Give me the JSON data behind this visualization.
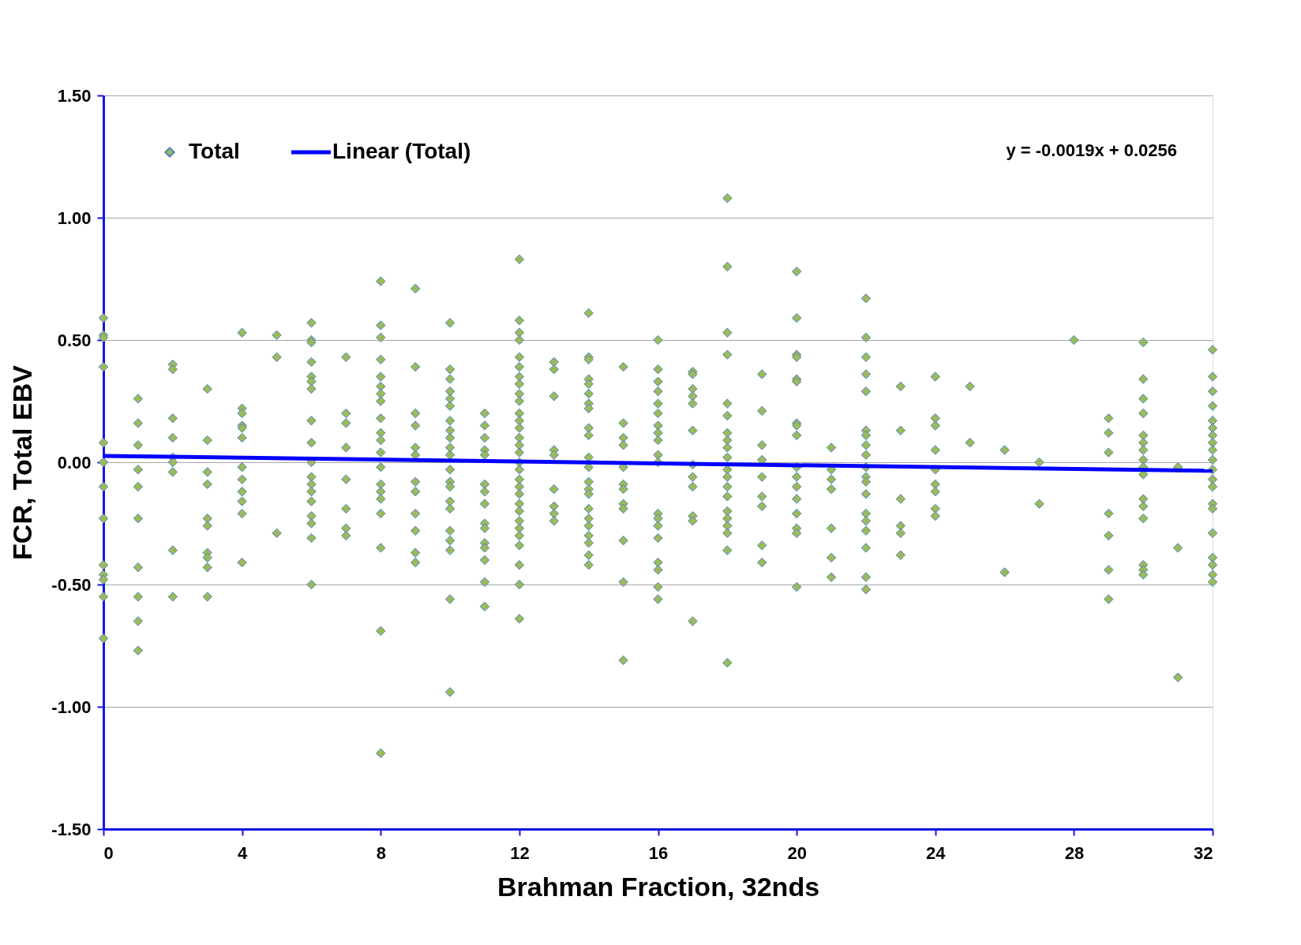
{
  "chart_data": {
    "type": "scatter",
    "xlabel": "Brahman Fraction, 32nds",
    "ylabel": "FCR, Total EBV",
    "xlim": [
      0,
      32
    ],
    "xticks": [
      0,
      4,
      8,
      12,
      16,
      20,
      24,
      28,
      32
    ],
    "ylim": [
      -1.5,
      1.5
    ],
    "yticks": [
      {
        "value": -1.5,
        "label": "-1.50"
      },
      {
        "value": -1.0,
        "label": "-1.00"
      },
      {
        "value": -0.5,
        "label": "-0.50"
      },
      {
        "value": 0,
        "label": "0.00"
      },
      {
        "value": 0.5,
        "label": "0.50"
      },
      {
        "value": 1.0,
        "label": "1.00"
      },
      {
        "value": 1.5,
        "label": "1.50"
      }
    ],
    "grid": "y",
    "legend": "top left",
    "marker": "diamond",
    "annotations": [
      "y = -0.0019x + 0.0256"
    ],
    "series": [
      {
        "name": "Total",
        "type": "scatter",
        "color": "#9bbb59",
        "x": [
          0,
          0,
          0,
          0,
          0,
          0,
          0,
          0,
          0,
          0,
          0,
          0,
          0,
          1,
          1,
          1,
          1,
          1,
          1,
          1,
          1,
          1,
          1,
          2,
          2,
          2,
          2,
          2,
          2,
          2,
          2,
          2,
          3,
          3,
          3,
          3,
          3,
          3,
          3,
          3,
          3,
          3,
          4,
          4,
          4,
          4,
          4,
          4,
          4,
          4,
          4,
          4,
          4,
          4,
          5,
          5,
          5,
          6,
          6,
          6,
          6,
          6,
          6,
          6,
          6,
          6,
          6,
          6,
          6,
          6,
          6,
          6,
          6,
          6,
          6,
          7,
          7,
          7,
          7,
          7,
          7,
          7,
          7,
          8,
          8,
          8,
          8,
          8,
          8,
          8,
          8,
          8,
          8,
          8,
          8,
          8,
          8,
          8,
          8,
          8,
          8,
          8,
          8,
          9,
          9,
          9,
          9,
          9,
          9,
          9,
          9,
          9,
          9,
          9,
          9,
          10,
          10,
          10,
          10,
          10,
          10,
          10,
          10,
          10,
          10,
          10,
          10,
          10,
          10,
          10,
          10,
          10,
          10,
          10,
          10,
          10,
          11,
          11,
          11,
          11,
          11,
          11,
          11,
          11,
          11,
          11,
          11,
          11,
          11,
          11,
          11,
          12,
          12,
          12,
          12,
          12,
          12,
          12,
          12,
          12,
          12,
          12,
          12,
          12,
          12,
          12,
          12,
          12,
          12,
          12,
          12,
          12,
          12,
          12,
          12,
          12,
          12,
          12,
          12,
          12,
          12,
          13,
          13,
          13,
          13,
          13,
          13,
          13,
          13,
          13,
          14,
          14,
          14,
          14,
          14,
          14,
          14,
          14,
          14,
          14,
          14,
          14,
          14,
          14,
          14,
          14,
          14,
          14,
          14,
          14,
          14,
          14,
          15,
          15,
          15,
          15,
          15,
          15,
          15,
          15,
          15,
          15,
          15,
          15,
          16,
          16,
          16,
          16,
          16,
          16,
          16,
          16,
          16,
          16,
          16,
          16,
          16,
          16,
          16,
          16,
          16,
          16,
          16,
          17,
          17,
          17,
          17,
          17,
          17,
          17,
          17,
          17,
          17,
          17,
          17,
          18,
          18,
          18,
          18,
          18,
          18,
          18,
          18,
          18,
          18,
          18,
          18,
          18,
          18,
          18,
          18,
          18,
          18,
          18,
          18,
          19,
          19,
          19,
          19,
          19,
          19,
          19,
          19,
          19,
          20,
          20,
          20,
          20,
          20,
          20,
          20,
          20,
          20,
          20,
          20,
          20,
          20,
          20,
          20,
          20,
          20,
          21,
          21,
          21,
          21,
          21,
          21,
          21,
          22,
          22,
          22,
          22,
          22,
          22,
          22,
          22,
          22,
          22,
          22,
          22,
          22,
          22,
          22,
          22,
          22,
          22,
          22,
          23,
          23,
          23,
          23,
          23,
          23,
          24,
          24,
          24,
          24,
          24,
          24,
          24,
          24,
          24,
          25,
          25,
          26,
          26,
          27,
          27,
          28,
          29,
          29,
          29,
          29,
          29,
          29,
          29,
          30,
          30,
          30,
          30,
          30,
          30,
          30,
          30,
          30,
          30,
          30,
          30,
          30,
          30,
          30,
          30,
          31,
          31,
          31,
          32,
          32,
          32,
          32,
          32,
          32,
          32,
          32,
          32,
          32,
          32,
          32,
          32,
          32,
          32,
          32,
          32,
          32,
          32,
          32
        ],
        "values": [
          0.59,
          0.52,
          0.51,
          0.39,
          0.08,
          0.0,
          -0.1,
          -0.23,
          -0.42,
          -0.46,
          -0.48,
          -0.55,
          -0.72,
          0.26,
          0.16,
          0.07,
          -0.03,
          -0.1,
          -0.23,
          -0.43,
          -0.55,
          -0.65,
          -0.77,
          0.4,
          0.38,
          0.18,
          0.1,
          0.02,
          0.0,
          -0.04,
          -0.36,
          -0.55,
          0.3,
          0.09,
          -0.04,
          -0.09,
          -0.23,
          -0.26,
          -0.37,
          -0.39,
          -0.43,
          -0.55,
          0.53,
          0.22,
          0.2,
          0.15,
          0.14,
          0.1,
          -0.02,
          -0.07,
          -0.12,
          -0.16,
          -0.21,
          -0.41,
          0.52,
          0.43,
          -0.29,
          0.57,
          0.5,
          0.49,
          0.41,
          0.35,
          0.33,
          0.3,
          0.17,
          0.08,
          0.0,
          -0.06,
          -0.09,
          -0.12,
          -0.16,
          -0.22,
          -0.25,
          -0.31,
          -0.5,
          0.43,
          0.2,
          0.16,
          0.06,
          -0.07,
          -0.19,
          -0.27,
          -0.3,
          0.74,
          0.56,
          0.51,
          0.42,
          0.35,
          0.31,
          0.28,
          0.25,
          0.18,
          0.12,
          0.09,
          0.04,
          -0.02,
          -0.09,
          -0.12,
          -0.15,
          -0.21,
          -0.35,
          -0.69,
          -1.19,
          0.71,
          0.39,
          0.2,
          0.15,
          0.06,
          0.03,
          -0.08,
          -0.12,
          -0.21,
          -0.28,
          -0.37,
          -0.41,
          0.57,
          0.38,
          0.34,
          0.29,
          0.26,
          0.23,
          0.17,
          0.13,
          0.1,
          0.06,
          0.03,
          -0.03,
          -0.08,
          -0.1,
          -0.16,
          -0.19,
          -0.28,
          -0.32,
          -0.36,
          -0.56,
          -0.94,
          0.2,
          0.15,
          0.1,
          0.05,
          0.03,
          -0.09,
          -0.12,
          -0.17,
          -0.25,
          -0.27,
          -0.33,
          -0.35,
          -0.4,
          -0.49,
          -0.59,
          0.83,
          0.58,
          0.53,
          0.5,
          0.43,
          0.39,
          0.35,
          0.32,
          0.28,
          0.25,
          0.2,
          0.17,
          0.14,
          0.1,
          0.07,
          0.04,
          0.0,
          -0.03,
          -0.07,
          -0.1,
          -0.13,
          -0.17,
          -0.2,
          -0.24,
          -0.27,
          -0.3,
          -0.34,
          -0.42,
          -0.5,
          -0.64,
          0.41,
          0.38,
          0.27,
          0.05,
          0.03,
          -0.11,
          -0.18,
          -0.21,
          -0.24,
          0.61,
          0.43,
          0.42,
          0.34,
          0.32,
          0.28,
          0.24,
          0.22,
          0.14,
          0.11,
          0.02,
          -0.02,
          -0.08,
          -0.11,
          -0.13,
          -0.19,
          -0.23,
          -0.26,
          -0.3,
          -0.33,
          -0.38,
          -0.42,
          0.39,
          0.16,
          0.1,
          0.07,
          -0.02,
          -0.09,
          -0.11,
          -0.17,
          -0.19,
          -0.32,
          -0.49,
          -0.81,
          0.5,
          0.38,
          0.33,
          0.29,
          0.24,
          0.2,
          0.15,
          0.12,
          0.09,
          0.03,
          0.0,
          -0.21,
          -0.23,
          -0.26,
          -0.31,
          -0.41,
          -0.44,
          -0.51,
          -0.56,
          0.37,
          0.36,
          0.3,
          0.27,
          0.24,
          0.13,
          -0.01,
          -0.06,
          -0.1,
          -0.22,
          -0.24,
          -0.65,
          1.08,
          0.8,
          0.53,
          0.44,
          0.24,
          0.19,
          0.12,
          0.09,
          0.06,
          0.02,
          -0.03,
          -0.06,
          -0.1,
          -0.14,
          -0.2,
          -0.23,
          -0.26,
          -0.29,
          -0.36,
          -0.82,
          0.36,
          0.21,
          0.07,
          0.01,
          -0.06,
          -0.14,
          -0.18,
          -0.34,
          -0.41,
          0.78,
          0.59,
          0.44,
          0.43,
          0.34,
          0.33,
          0.16,
          0.15,
          0.11,
          -0.02,
          -0.06,
          -0.1,
          -0.15,
          -0.21,
          -0.27,
          -0.29,
          -0.51,
          0.06,
          -0.03,
          -0.07,
          -0.11,
          -0.27,
          -0.39,
          -0.47,
          0.67,
          0.51,
          0.43,
          0.36,
          0.29,
          0.13,
          0.11,
          0.07,
          0.03,
          -0.02,
          -0.06,
          -0.08,
          -0.13,
          -0.21,
          -0.24,
          -0.28,
          -0.35,
          -0.47,
          -0.52,
          0.31,
          0.13,
          -0.15,
          -0.26,
          -0.29,
          -0.38,
          0.35,
          0.18,
          0.15,
          0.05,
          -0.03,
          -0.09,
          -0.12,
          -0.19,
          -0.22,
          0.31,
          0.08,
          0.05,
          -0.45,
          0.0,
          -0.17,
          0.5,
          0.18,
          0.12,
          0.04,
          -0.21,
          -0.3,
          -0.44,
          -0.56,
          0.49,
          0.34,
          0.26,
          0.2,
          0.11,
          0.08,
          0.05,
          0.01,
          -0.02,
          -0.05,
          -0.15,
          -0.18,
          -0.23,
          -0.42,
          -0.44,
          -0.46,
          -0.02,
          -0.35,
          -0.88,
          0.46,
          0.35,
          0.29,
          0.23,
          0.17,
          0.14,
          0.11,
          0.08,
          0.05,
          0.01,
          -0.03,
          -0.07,
          -0.1,
          -0.17,
          -0.19,
          -0.29,
          -0.39,
          -0.42,
          -0.46,
          -0.49
        ]
      },
      {
        "name": "Linear (Total)",
        "type": "line",
        "marker": "none",
        "line_style": "solid",
        "color": "#0000ff",
        "x": [
          0,
          32
        ],
        "values": [
          0.026,
          -0.035
        ]
      }
    ]
  }
}
